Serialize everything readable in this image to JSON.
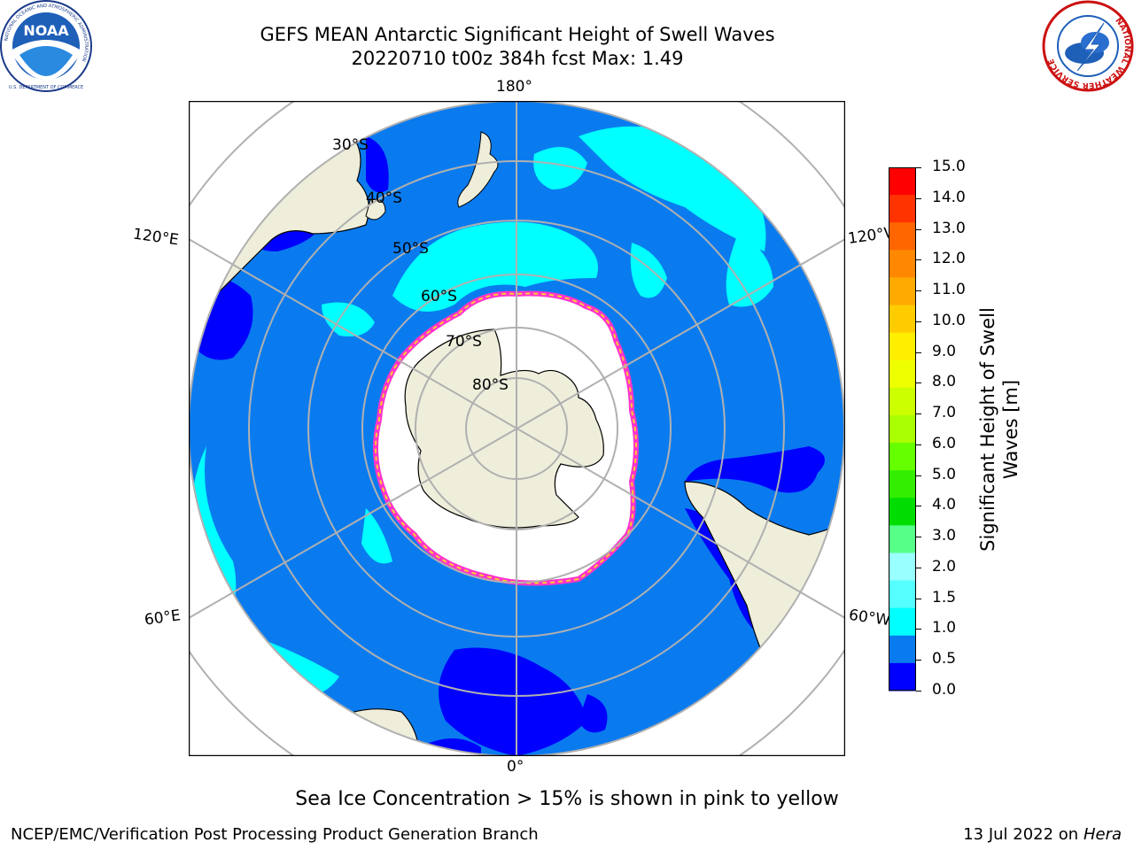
{
  "header": {
    "title_line1": "GEFS MEAN Antarctic Significant Height of Swell Waves",
    "title_line2": "20220710 t00z 384h fcst   Max: 1.49"
  },
  "logos": {
    "noaa": {
      "text": "NOAA",
      "ring_text": "NATIONAL OCEANIC AND ATMOSPHERIC ADMINISTRATION",
      "bottom_text": "U.S. DEPARTMENT OF COMMERCE"
    },
    "nws": {
      "ring_text": "NATIONAL WEATHER SERVICE"
    }
  },
  "map": {
    "projection": "south-polar-stereographic",
    "longitude_labels": {
      "top": "180°",
      "bottom": "0°",
      "upper_left": "120°E",
      "upper_right": "120°W",
      "lower_left": "60°E",
      "lower_right": "60°W"
    },
    "latitude_labels": [
      "30°S",
      "40°S",
      "50°S",
      "60°S",
      "70°S",
      "80°S"
    ],
    "colors": {
      "land": "#eeeedb",
      "ocean_0_5": "#0000ff",
      "ocean_0_5_1_0": "#0a7bef",
      "swell_1_0_1_5": "#00ffff",
      "sea_ice_white": "#ffffff",
      "ice_edge_pink": "#ff33cc",
      "ice_edge_yellow": "#ffcc33",
      "grid": "#b0b0b0"
    }
  },
  "colorbar": {
    "label": "Significant Height of Swell Waves [m]",
    "ticks": [
      "15.0",
      "14.0",
      "13.0",
      "12.0",
      "11.0",
      "10.0",
      "9.0",
      "8.0",
      "7.0",
      "6.0",
      "5.0",
      "4.0",
      "3.0",
      "2.0",
      "1.5",
      "1.0",
      "0.5",
      "0.0"
    ],
    "colors_top_to_bottom": [
      "#ff0000",
      "#ff3300",
      "#ff6600",
      "#ff8800",
      "#ffaa00",
      "#ffcc00",
      "#ffee00",
      "#eeff00",
      "#ccff00",
      "#aaff00",
      "#66ff00",
      "#33ee00",
      "#00dd00",
      "#55ff88",
      "#99ffff",
      "#55ffff",
      "#00ffff",
      "#0a7bef",
      "#0000ff"
    ]
  },
  "footer": {
    "note": "Sea Ice Concentration > 15% is shown in pink to yellow",
    "credit_left": "NCEP/EMC/Verification Post Processing Product Generation Branch",
    "credit_right_date": "13 Jul 2022 on ",
    "credit_right_host": "Hera"
  }
}
